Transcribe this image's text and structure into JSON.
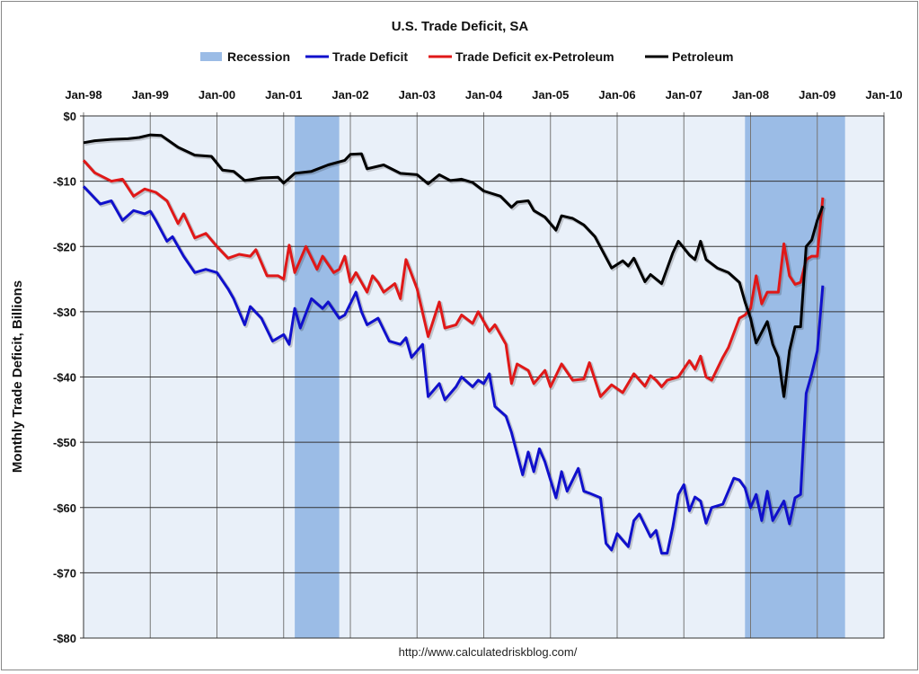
{
  "chart_data": {
    "type": "line",
    "title": "U.S. Trade Deficit, SA",
    "ylabel": "Monthly Trade Deficit, Billions",
    "xlabel": "",
    "footer": "http://www.calculatedriskblog.com/",
    "x_ticks": [
      "Jan-98",
      "Jan-99",
      "Jan-00",
      "Jan-01",
      "Jan-02",
      "Jan-03",
      "Jan-04",
      "Jan-05",
      "Jan-06",
      "Jan-07",
      "Jan-08",
      "Jan-09",
      "Jan-10"
    ],
    "x_range": [
      "1998-01",
      "2010-01"
    ],
    "y_ticks": [
      "$0",
      "-$10",
      "-$20",
      "-$30",
      "-$40",
      "-$50",
      "-$60",
      "-$70",
      "-$80"
    ],
    "ylim": [
      -80,
      0
    ],
    "grid": true,
    "legend_position": "top",
    "recessions": {
      "name": "Recession",
      "color": "#9bbce6",
      "periods": [
        [
          "2001-03",
          "2001-11"
        ],
        [
          "2007-12",
          "2009-06"
        ]
      ]
    },
    "series": [
      {
        "name": "Trade Deficit",
        "color": "#1010cc",
        "points": [
          [
            "1998-01",
            -10.8
          ],
          [
            "1998-04",
            -13.5
          ],
          [
            "1998-06",
            -13
          ],
          [
            "1998-08",
            -16
          ],
          [
            "1998-10",
            -14.5
          ],
          [
            "1998-12",
            -15
          ],
          [
            "1999-01",
            -14.6
          ],
          [
            "1999-02",
            -16
          ],
          [
            "1999-04",
            -19.2
          ],
          [
            "1999-05",
            -18.5
          ],
          [
            "1999-07",
            -21.5
          ],
          [
            "1999-09",
            -24
          ],
          [
            "1999-11",
            -23.5
          ],
          [
            "2000-01",
            -24
          ],
          [
            "2000-03",
            -26.5
          ],
          [
            "2000-04",
            -28
          ],
          [
            "2000-06",
            -32
          ],
          [
            "2000-07",
            -29.2
          ],
          [
            "2000-09",
            -31
          ],
          [
            "2000-11",
            -34.5
          ],
          [
            "2001-01",
            -33.5
          ],
          [
            "2001-02",
            -35
          ],
          [
            "2001-03",
            -29.5
          ],
          [
            "2001-04",
            -32.5
          ],
          [
            "2001-06",
            -28
          ],
          [
            "2001-08",
            -29.5
          ],
          [
            "2001-09",
            -28.5
          ],
          [
            "2001-11",
            -31
          ],
          [
            "2001-12",
            -30.5
          ],
          [
            "2002-02",
            -27
          ],
          [
            "2002-03",
            -30
          ],
          [
            "2002-04",
            -32
          ],
          [
            "2002-06",
            -31
          ],
          [
            "2002-08",
            -34.5
          ],
          [
            "2002-10",
            -35
          ],
          [
            "2002-11",
            -34
          ],
          [
            "2002-12",
            -37
          ],
          [
            "2003-02",
            -35
          ],
          [
            "2003-03",
            -43
          ],
          [
            "2003-05",
            -41
          ],
          [
            "2003-06",
            -43.5
          ],
          [
            "2003-08",
            -41.5
          ],
          [
            "2003-09",
            -40
          ],
          [
            "2003-11",
            -41.5
          ],
          [
            "2003-12",
            -40.5
          ],
          [
            "2004-01",
            -41
          ],
          [
            "2004-02",
            -39.5
          ],
          [
            "2004-03",
            -44.5
          ],
          [
            "2004-05",
            -46
          ],
          [
            "2004-06",
            -48.5
          ],
          [
            "2004-08",
            -55
          ],
          [
            "2004-09",
            -51.5
          ],
          [
            "2004-10",
            -54.5
          ],
          [
            "2004-11",
            -51
          ],
          [
            "2004-12",
            -53
          ],
          [
            "2005-02",
            -58.5
          ],
          [
            "2005-03",
            -54.5
          ],
          [
            "2005-04",
            -57.5
          ],
          [
            "2005-06",
            -54
          ],
          [
            "2005-07",
            -57.5
          ],
          [
            "2005-08",
            -57.8
          ],
          [
            "2005-10",
            -58.5
          ],
          [
            "2005-11",
            -65.5
          ],
          [
            "2005-12",
            -66.5
          ],
          [
            "2006-01",
            -64
          ],
          [
            "2006-02",
            -65
          ],
          [
            "2006-03",
            -66
          ],
          [
            "2006-04",
            -62
          ],
          [
            "2006-05",
            -61
          ],
          [
            "2006-07",
            -64.5
          ],
          [
            "2006-08",
            -63.5
          ],
          [
            "2006-09",
            -67
          ],
          [
            "2006-10",
            -67
          ],
          [
            "2006-11",
            -63
          ],
          [
            "2006-12",
            -58
          ],
          [
            "2007-01",
            -56.5
          ],
          [
            "2007-02",
            -60.5
          ],
          [
            "2007-03",
            -58.4
          ],
          [
            "2007-04",
            -59
          ],
          [
            "2007-05",
            -62.4
          ],
          [
            "2007-06",
            -60
          ],
          [
            "2007-08",
            -59.5
          ],
          [
            "2007-09",
            -57.5
          ],
          [
            "2007-10",
            -55.5
          ],
          [
            "2007-11",
            -55.8
          ],
          [
            "2007-12",
            -57
          ],
          [
            "2008-01",
            -60
          ],
          [
            "2008-02",
            -58
          ],
          [
            "2008-03",
            -62
          ],
          [
            "2008-04",
            -57.5
          ],
          [
            "2008-05",
            -62
          ],
          [
            "2008-06",
            -60.5
          ],
          [
            "2008-07",
            -59
          ],
          [
            "2008-08",
            -62.5
          ],
          [
            "2008-09",
            -58.5
          ],
          [
            "2008-10",
            -58
          ],
          [
            "2008-11",
            -42.5
          ],
          [
            "2008-12",
            -39.5
          ],
          [
            "2009-01",
            -36
          ],
          [
            "2009-02",
            -26
          ]
        ]
      },
      {
        "name": "Trade Deficit ex-Petroleum",
        "color": "#e01818",
        "points": [
          [
            "1998-01",
            -6.8
          ],
          [
            "1998-03",
            -8.7
          ],
          [
            "1998-06",
            -10
          ],
          [
            "1998-08",
            -9.7
          ],
          [
            "1998-10",
            -12.3
          ],
          [
            "1998-12",
            -11.2
          ],
          [
            "1999-02",
            -11.7
          ],
          [
            "1999-04",
            -13
          ],
          [
            "1999-06",
            -16.5
          ],
          [
            "1999-07",
            -15
          ],
          [
            "1999-09",
            -18.7
          ],
          [
            "1999-11",
            -18
          ],
          [
            "2000-01",
            -20
          ],
          [
            "2000-03",
            -21.8
          ],
          [
            "2000-05",
            -21.2
          ],
          [
            "2000-07",
            -21.5
          ],
          [
            "2000-08",
            -20.5
          ],
          [
            "2000-10",
            -24.5
          ],
          [
            "2000-12",
            -24.5
          ],
          [
            "2001-01",
            -25
          ],
          [
            "2001-02",
            -19.8
          ],
          [
            "2001-03",
            -24
          ],
          [
            "2001-05",
            -20
          ],
          [
            "2001-07",
            -23.5
          ],
          [
            "2001-08",
            -21.5
          ],
          [
            "2001-10",
            -24
          ],
          [
            "2001-11",
            -23.5
          ],
          [
            "2001-12",
            -21.5
          ],
          [
            "2002-01",
            -25.5
          ],
          [
            "2002-02",
            -24
          ],
          [
            "2002-04",
            -27
          ],
          [
            "2002-05",
            -24.5
          ],
          [
            "2002-06",
            -25.5
          ],
          [
            "2002-07",
            -27
          ],
          [
            "2002-09",
            -25.7
          ],
          [
            "2002-10",
            -28
          ],
          [
            "2002-11",
            -22
          ],
          [
            "2003-01",
            -26.5
          ],
          [
            "2003-03",
            -33.8
          ],
          [
            "2003-05",
            -28.5
          ],
          [
            "2003-06",
            -32.5
          ],
          [
            "2003-08",
            -32
          ],
          [
            "2003-09",
            -30.5
          ],
          [
            "2003-11",
            -31.8
          ],
          [
            "2003-12",
            -30
          ],
          [
            "2004-02",
            -33
          ],
          [
            "2004-03",
            -32
          ],
          [
            "2004-05",
            -35
          ],
          [
            "2004-06",
            -41
          ],
          [
            "2004-07",
            -38
          ],
          [
            "2004-09",
            -39
          ],
          [
            "2004-10",
            -41
          ],
          [
            "2004-12",
            -39
          ],
          [
            "2005-01",
            -41.5
          ],
          [
            "2005-03",
            -38
          ],
          [
            "2005-05",
            -40.5
          ],
          [
            "2005-07",
            -40.3
          ],
          [
            "2005-08",
            -37.8
          ],
          [
            "2005-10",
            -43
          ],
          [
            "2005-12",
            -41.2
          ],
          [
            "2006-02",
            -42.4
          ],
          [
            "2006-04",
            -39.5
          ],
          [
            "2006-06",
            -41.4
          ],
          [
            "2006-07",
            -39.8
          ],
          [
            "2006-08",
            -40.5
          ],
          [
            "2006-09",
            -41.5
          ],
          [
            "2006-10",
            -40.5
          ],
          [
            "2006-12",
            -40
          ],
          [
            "2007-02",
            -37.5
          ],
          [
            "2007-03",
            -38.8
          ],
          [
            "2007-04",
            -36.8
          ],
          [
            "2007-05",
            -40
          ],
          [
            "2007-06",
            -40.5
          ],
          [
            "2007-08",
            -37
          ],
          [
            "2007-09",
            -35.5
          ],
          [
            "2007-11",
            -31
          ],
          [
            "2007-12",
            -30.5
          ],
          [
            "2008-01",
            -29.5
          ],
          [
            "2008-02",
            -24.5
          ],
          [
            "2008-03",
            -28.8
          ],
          [
            "2008-04",
            -27
          ],
          [
            "2008-06",
            -27
          ],
          [
            "2008-07",
            -19.6
          ],
          [
            "2008-08",
            -24.5
          ],
          [
            "2008-09",
            -25.8
          ],
          [
            "2008-10",
            -25.5
          ],
          [
            "2008-11",
            -22
          ],
          [
            "2008-12",
            -21.5
          ],
          [
            "2009-01",
            -21.5
          ],
          [
            "2009-02",
            -12.5
          ]
        ]
      },
      {
        "name": "Petroleum",
        "color": "#000000",
        "points": [
          [
            "1998-01",
            -4.1
          ],
          [
            "1998-03",
            -3.8
          ],
          [
            "1998-06",
            -3.6
          ],
          [
            "1998-09",
            -3.5
          ],
          [
            "1998-11",
            -3.3
          ],
          [
            "1999-01",
            -2.9
          ],
          [
            "1999-03",
            -3
          ],
          [
            "1999-06",
            -4.8
          ],
          [
            "1999-09",
            -6
          ],
          [
            "1999-12",
            -6.2
          ],
          [
            "2000-02",
            -8.3
          ],
          [
            "2000-04",
            -8.5
          ],
          [
            "2000-06",
            -9.9
          ],
          [
            "2000-09",
            -9.5
          ],
          [
            "2000-12",
            -9.4
          ],
          [
            "2001-01",
            -10.3
          ],
          [
            "2001-03",
            -8.8
          ],
          [
            "2001-06",
            -8.5
          ],
          [
            "2001-09",
            -7.5
          ],
          [
            "2001-12",
            -6.8
          ],
          [
            "2002-01",
            -5.9
          ],
          [
            "2002-03",
            -5.8
          ],
          [
            "2002-04",
            -8.1
          ],
          [
            "2002-07",
            -7.5
          ],
          [
            "2002-10",
            -8.8
          ],
          [
            "2003-01",
            -9
          ],
          [
            "2003-03",
            -10.4
          ],
          [
            "2003-05",
            -9
          ],
          [
            "2003-07",
            -9.9
          ],
          [
            "2003-09",
            -9.7
          ],
          [
            "2003-11",
            -10.2
          ],
          [
            "2004-01",
            -11.5
          ],
          [
            "2004-04",
            -12.3
          ],
          [
            "2004-06",
            -14
          ],
          [
            "2004-07",
            -13.2
          ],
          [
            "2004-09",
            -13
          ],
          [
            "2004-10",
            -14.5
          ],
          [
            "2004-12",
            -15.5
          ],
          [
            "2005-02",
            -17.5
          ],
          [
            "2005-03",
            -15.3
          ],
          [
            "2005-05",
            -15.7
          ],
          [
            "2005-07",
            -16.7
          ],
          [
            "2005-09",
            -18.5
          ],
          [
            "2005-11",
            -21.7
          ],
          [
            "2005-12",
            -23.3
          ],
          [
            "2006-02",
            -22.2
          ],
          [
            "2006-03",
            -23
          ],
          [
            "2006-04",
            -21.8
          ],
          [
            "2006-06",
            -25.4
          ],
          [
            "2006-07",
            -24.3
          ],
          [
            "2006-09",
            -25.7
          ],
          [
            "2006-11",
            -21
          ],
          [
            "2006-12",
            -19.2
          ],
          [
            "2007-02",
            -21.3
          ],
          [
            "2007-03",
            -22
          ],
          [
            "2007-04",
            -19.2
          ],
          [
            "2007-05",
            -22
          ],
          [
            "2007-07",
            -23.3
          ],
          [
            "2007-09",
            -24
          ],
          [
            "2007-11",
            -25.5
          ],
          [
            "2007-12",
            -28.5
          ],
          [
            "2008-01",
            -31
          ],
          [
            "2008-02",
            -34.8
          ],
          [
            "2008-04",
            -31.5
          ],
          [
            "2008-05",
            -35
          ],
          [
            "2008-06",
            -37
          ],
          [
            "2008-07",
            -43
          ],
          [
            "2008-08",
            -36
          ],
          [
            "2008-09",
            -32.3
          ],
          [
            "2008-10",
            -32.3
          ],
          [
            "2008-11",
            -20
          ],
          [
            "2008-12",
            -19
          ],
          [
            "2009-01",
            -16
          ],
          [
            "2009-02",
            -13.8
          ]
        ]
      }
    ]
  }
}
